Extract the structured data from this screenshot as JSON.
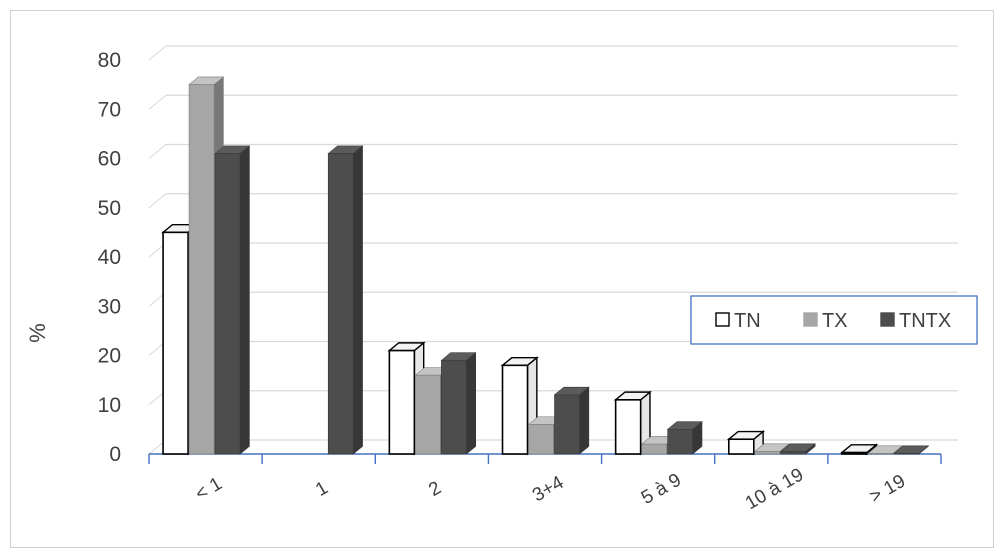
{
  "chart_data": {
    "type": "bar",
    "style": "3d-clustered-column",
    "categories": [
      "< 1",
      "1",
      "2",
      "3+4",
      "5 à 9",
      "10 à 19",
      "> 19"
    ],
    "series": [
      {
        "name": "TN",
        "values": [
          45,
          0,
          21,
          18,
          11,
          3,
          0.3
        ],
        "color": "#ffffff"
      },
      {
        "name": "TX",
        "values": [
          75,
          0,
          16,
          6,
          2,
          0.5,
          0.1
        ],
        "color": "#a6a6a6"
      },
      {
        "name": "TNTX",
        "values": [
          61,
          61,
          19,
          12,
          5,
          0.5,
          0.1
        ],
        "color": "#4d4d4d"
      }
    ],
    "ylabel": "%",
    "xlabel": "",
    "ylim": [
      0,
      80
    ],
    "yticks": [
      0,
      10,
      20,
      30,
      40,
      50,
      60,
      70,
      80
    ],
    "grid": true,
    "legend_position": "right"
  }
}
